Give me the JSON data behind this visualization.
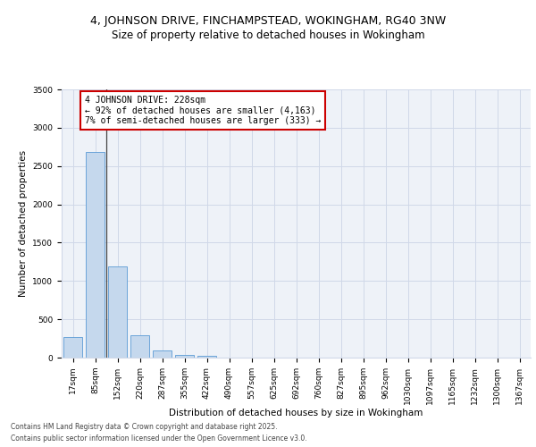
{
  "title": "4, JOHNSON DRIVE, FINCHAMPSTEAD, WOKINGHAM, RG40 3NW",
  "subtitle": "Size of property relative to detached houses in Wokingham",
  "xlabel": "Distribution of detached houses by size in Wokingham",
  "ylabel": "Number of detached properties",
  "categories": [
    "17sqm",
    "85sqm",
    "152sqm",
    "220sqm",
    "287sqm",
    "355sqm",
    "422sqm",
    "490sqm",
    "557sqm",
    "625sqm",
    "692sqm",
    "760sqm",
    "827sqm",
    "895sqm",
    "962sqm",
    "1030sqm",
    "1097sqm",
    "1165sqm",
    "1232sqm",
    "1300sqm",
    "1367sqm"
  ],
  "values": [
    270,
    2680,
    1185,
    295,
    90,
    35,
    20,
    0,
    0,
    0,
    0,
    0,
    0,
    0,
    0,
    0,
    0,
    0,
    0,
    0,
    0
  ],
  "bar_color": "#c5d8ed",
  "bar_edge_color": "#5b9bd5",
  "grid_color": "#d0d8e8",
  "background_color": "#eef2f8",
  "annotation_box_line1": "4 JOHNSON DRIVE: 228sqm",
  "annotation_box_line2": "← 92% of detached houses are smaller (4,163)",
  "annotation_box_line3": "7% of semi-detached houses are larger (333) →",
  "annotation_box_color": "#cc0000",
  "ylim": [
    0,
    3500
  ],
  "yticks": [
    0,
    500,
    1000,
    1500,
    2000,
    2500,
    3000,
    3500
  ],
  "footer_line1": "Contains HM Land Registry data © Crown copyright and database right 2025.",
  "footer_line2": "Contains public sector information licensed under the Open Government Licence v3.0.",
  "title_fontsize": 9,
  "subtitle_fontsize": 8.5,
  "axis_label_fontsize": 7.5,
  "tick_fontsize": 6.5,
  "annotation_fontsize": 7,
  "footer_fontsize": 5.5
}
